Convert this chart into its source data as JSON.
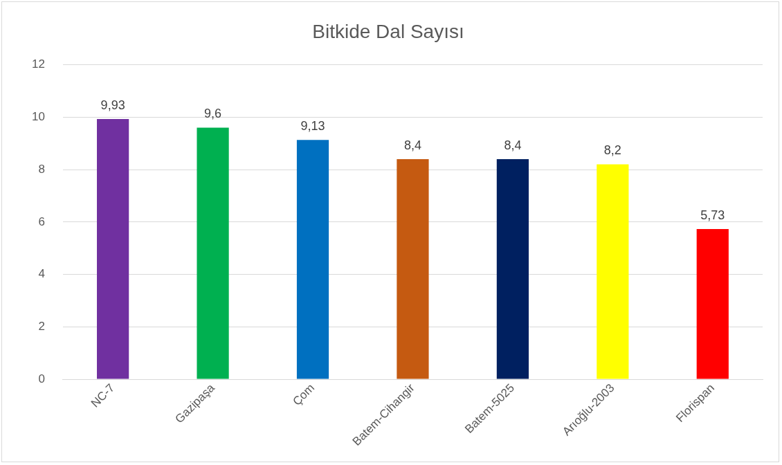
{
  "chart_data": {
    "type": "bar",
    "title": "Bitkide Dal Sayısı",
    "categories": [
      "NC-7",
      "Gazipaşa",
      "Çom",
      "Batem-Cihangir",
      "Batem-5025",
      "Arıoğlu-2003",
      "Florispan"
    ],
    "values": [
      9.93,
      9.6,
      9.13,
      8.4,
      8.4,
      8.2,
      5.73
    ],
    "colors": [
      "#7030a0",
      "#00b050",
      "#0070c0",
      "#c55a11",
      "#002060",
      "#ffff00",
      "#ff0000"
    ],
    "value_labels": [
      "9,93",
      "9,6",
      "9,13",
      "8,4",
      "8,4",
      "8,2",
      "5,73"
    ],
    "ylim": [
      0,
      12
    ],
    "yticks": [
      0,
      2,
      4,
      6,
      8,
      10,
      12
    ],
    "grid": "y",
    "legend": false
  }
}
